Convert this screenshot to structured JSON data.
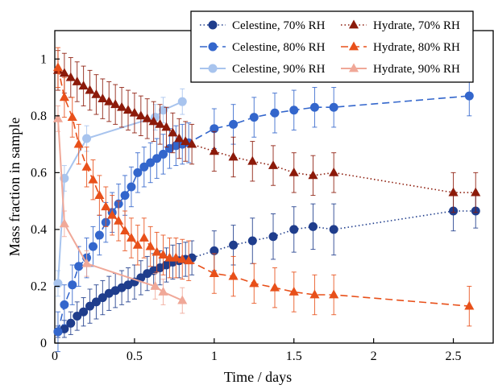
{
  "chart_data": {
    "type": "scatter",
    "xlabel": "Time  /  days",
    "ylabel": "Mass fraction in sample",
    "xlim": [
      0,
      2.75
    ],
    "ylim": [
      0,
      1.1
    ],
    "x_ticks": [
      "0",
      "0.5",
      "1",
      "1.5",
      "2",
      "2.5"
    ],
    "x_tick_values": [
      0,
      0.5,
      1,
      1.5,
      2,
      2.5
    ],
    "y_ticks": [
      "0",
      "0.2",
      "0.4",
      "0.6",
      "0.8",
      "1"
    ],
    "y_tick_values": [
      0,
      0.2,
      0.4,
      0.6,
      0.8,
      1
    ],
    "grid": false,
    "legend_position": "top-right",
    "series": [
      {
        "name": "Celestine, 70% RH",
        "color": "#1f3d8c",
        "marker": "circle",
        "line": "dotted",
        "x": [
          0.02,
          0.06,
          0.1,
          0.14,
          0.18,
          0.22,
          0.26,
          0.3,
          0.34,
          0.38,
          0.42,
          0.46,
          0.5,
          0.54,
          0.58,
          0.62,
          0.66,
          0.7,
          0.74,
          0.78,
          0.82,
          0.86,
          1.0,
          1.12,
          1.24,
          1.37,
          1.5,
          1.62,
          1.75,
          2.5,
          2.64
        ],
        "y": [
          0.04,
          0.05,
          0.07,
          0.095,
          0.11,
          0.13,
          0.145,
          0.16,
          0.175,
          0.185,
          0.195,
          0.205,
          0.215,
          0.23,
          0.245,
          0.255,
          0.265,
          0.275,
          0.285,
          0.29,
          0.295,
          0.3,
          0.325,
          0.345,
          0.36,
          0.375,
          0.4,
          0.41,
          0.4,
          0.465,
          0.465
        ],
        "err": [
          0.02,
          0.03,
          0.04,
          0.05,
          0.05,
          0.06,
          0.06,
          0.06,
          0.06,
          0.06,
          0.06,
          0.06,
          0.06,
          0.06,
          0.06,
          0.06,
          0.06,
          0.06,
          0.06,
          0.06,
          0.06,
          0.06,
          0.07,
          0.07,
          0.08,
          0.08,
          0.08,
          0.08,
          0.09,
          0.07,
          0.06
        ]
      },
      {
        "name": "Celestine, 80% RH",
        "color": "#3366cc",
        "marker": "circle",
        "line": "dashed",
        "x": [
          0.02,
          0.06,
          0.11,
          0.15,
          0.2,
          0.24,
          0.28,
          0.32,
          0.36,
          0.4,
          0.44,
          0.48,
          0.52,
          0.56,
          0.6,
          0.64,
          0.68,
          0.72,
          0.76,
          0.8,
          0.84,
          1.0,
          1.12,
          1.25,
          1.38,
          1.5,
          1.63,
          1.75,
          2.6
        ],
        "y": [
          0.04,
          0.135,
          0.205,
          0.27,
          0.3,
          0.34,
          0.38,
          0.425,
          0.46,
          0.49,
          0.52,
          0.55,
          0.6,
          0.62,
          0.635,
          0.65,
          0.665,
          0.685,
          0.695,
          0.7,
          0.705,
          0.755,
          0.77,
          0.795,
          0.81,
          0.82,
          0.83,
          0.83,
          0.87
        ]
      },
      {
        "name": "Celestine, 90% RH",
        "color": "#a8c4ee",
        "marker": "circle",
        "line": "solid",
        "x": [
          0.02,
          0.06,
          0.2,
          0.63,
          0.68,
          0.8
        ],
        "y": [
          0.21,
          0.58,
          0.72,
          0.795,
          0.82,
          0.85
        ]
      },
      {
        "name": "Hydrate, 70% RH",
        "color": "#8c1a0a",
        "marker": "triangle",
        "line": "dotted",
        "x": [
          0.02,
          0.06,
          0.1,
          0.14,
          0.18,
          0.22,
          0.26,
          0.3,
          0.34,
          0.38,
          0.42,
          0.46,
          0.5,
          0.54,
          0.58,
          0.62,
          0.66,
          0.7,
          0.74,
          0.78,
          0.82,
          0.86,
          1.0,
          1.12,
          1.24,
          1.37,
          1.5,
          1.62,
          1.75,
          2.5,
          2.64
        ],
        "y": [
          0.96,
          0.95,
          0.935,
          0.92,
          0.905,
          0.89,
          0.875,
          0.86,
          0.85,
          0.84,
          0.83,
          0.82,
          0.81,
          0.8,
          0.79,
          0.78,
          0.77,
          0.76,
          0.74,
          0.72,
          0.71,
          0.7,
          0.675,
          0.655,
          0.64,
          0.625,
          0.6,
          0.59,
          0.6,
          0.53,
          0.53
        ]
      },
      {
        "name": "Hydrate, 80% RH",
        "color": "#e8501a",
        "marker": "triangle",
        "line": "dashed",
        "x": [
          0.02,
          0.06,
          0.11,
          0.15,
          0.2,
          0.24,
          0.28,
          0.32,
          0.36,
          0.4,
          0.44,
          0.48,
          0.52,
          0.56,
          0.6,
          0.64,
          0.68,
          0.72,
          0.76,
          0.8,
          0.84,
          1.0,
          1.12,
          1.25,
          1.38,
          1.5,
          1.63,
          1.75,
          2.6
        ],
        "y": [
          0.97,
          0.865,
          0.795,
          0.7,
          0.62,
          0.575,
          0.52,
          0.48,
          0.45,
          0.43,
          0.395,
          0.37,
          0.345,
          0.37,
          0.34,
          0.32,
          0.31,
          0.3,
          0.3,
          0.295,
          0.29,
          0.245,
          0.235,
          0.21,
          0.195,
          0.18,
          0.17,
          0.17,
          0.13
        ]
      },
      {
        "name": "Hydrate, 90% RH",
        "color": "#f0a898",
        "marker": "triangle",
        "line": "solid",
        "x": [
          0.02,
          0.06,
          0.2,
          0.63,
          0.68,
          0.8
        ],
        "y": [
          0.79,
          0.42,
          0.28,
          0.2,
          0.18,
          0.15
        ]
      }
    ]
  }
}
